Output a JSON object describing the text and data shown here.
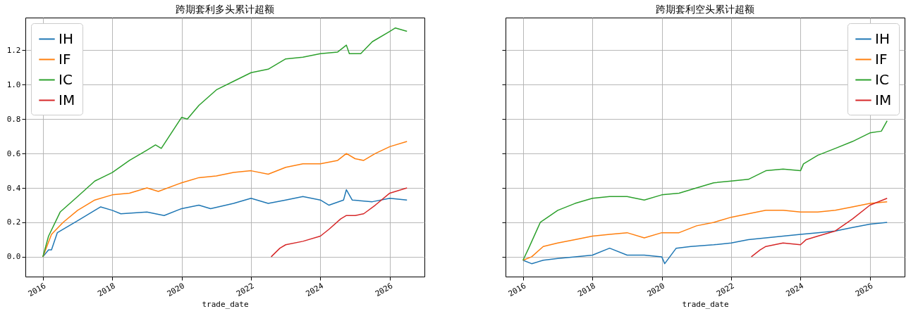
{
  "chart_data": [
    {
      "type": "line",
      "title": "跨期套利多头累计超额",
      "xlabel": "trade_date",
      "xlim": [
        "2015-07",
        "2027-01"
      ],
      "xticks": [
        "2016",
        "2018",
        "2020",
        "2022",
        "2024",
        "2026"
      ],
      "ylim": [
        -0.115,
        1.39
      ],
      "yticks": [
        {
          "value": 0,
          "label": "0.0"
        },
        {
          "value": 0.2,
          "label": "0.2"
        },
        {
          "value": 0.4,
          "label": "0.4"
        },
        {
          "value": 0.6,
          "label": "0.6"
        },
        {
          "value": 0.8,
          "label": "0.8"
        },
        {
          "value": 1,
          "label": "1.0"
        },
        {
          "value": 1.2,
          "label": "1.2"
        }
      ],
      "grid": true,
      "legend": "top left",
      "series": [
        {
          "name": "IH",
          "color": "#1f77b4",
          "x": [
            "2016-01",
            "2016-03",
            "2016-04",
            "2016-06",
            "2017-01",
            "2017-07",
            "2017-09",
            "2018-01",
            "2018-04",
            "2019-01",
            "2019-07",
            "2020-01",
            "2020-07",
            "2020-11",
            "2021-07",
            "2022-01",
            "2022-07",
            "2023-01",
            "2023-07",
            "2024-01",
            "2024-04",
            "2024-09",
            "2024-10",
            "2024-12",
            "2025-07",
            "2026-01",
            "2026-07"
          ],
          "values": [
            0,
            0.04,
            0.04,
            0.14,
            0.21,
            0.27,
            0.29,
            0.27,
            0.25,
            0.26,
            0.24,
            0.28,
            0.3,
            0.28,
            0.31,
            0.34,
            0.31,
            0.33,
            0.35,
            0.33,
            0.3,
            0.33,
            0.39,
            0.33,
            0.32,
            0.34,
            0.33
          ]
        },
        {
          "name": "IF",
          "color": "#ff7f0e",
          "x": [
            "2016-01",
            "2016-04",
            "2016-08",
            "2017-01",
            "2017-07",
            "2018-01",
            "2018-07",
            "2019-01",
            "2019-05",
            "2020-01",
            "2020-07",
            "2021-01",
            "2021-07",
            "2022-01",
            "2022-07",
            "2023-01",
            "2023-07",
            "2024-01",
            "2024-07",
            "2024-10",
            "2025-01",
            "2025-04",
            "2025-08",
            "2026-01",
            "2026-07"
          ],
          "values": [
            0,
            0.13,
            0.2,
            0.27,
            0.33,
            0.36,
            0.37,
            0.4,
            0.38,
            0.43,
            0.46,
            0.47,
            0.49,
            0.5,
            0.48,
            0.52,
            0.54,
            0.54,
            0.56,
            0.6,
            0.57,
            0.56,
            0.6,
            0.64,
            0.67
          ]
        },
        {
          "name": "IC",
          "color": "#2ca02c",
          "x": [
            "2016-01",
            "2016-03",
            "2016-07",
            "2017-01",
            "2017-07",
            "2018-01",
            "2018-07",
            "2019-01",
            "2019-04",
            "2019-06",
            "2020-01",
            "2020-03",
            "2020-07",
            "2021-01",
            "2021-07",
            "2022-01",
            "2022-07",
            "2023-01",
            "2023-07",
            "2024-01",
            "2024-07",
            "2024-10",
            "2024-11",
            "2025-03",
            "2025-07",
            "2026-01",
            "2026-03",
            "2026-07"
          ],
          "values": [
            0,
            0.12,
            0.26,
            0.35,
            0.44,
            0.49,
            0.56,
            0.62,
            0.65,
            0.63,
            0.81,
            0.8,
            0.88,
            0.97,
            1.02,
            1.07,
            1.09,
            1.15,
            1.16,
            1.18,
            1.19,
            1.23,
            1.18,
            1.18,
            1.25,
            1.31,
            1.33,
            1.31
          ]
        },
        {
          "name": "IM",
          "color": "#d62728",
          "x": [
            "2022-08",
            "2022-11",
            "2023-01",
            "2023-07",
            "2024-01",
            "2024-04",
            "2024-08",
            "2024-10",
            "2025-01",
            "2025-04",
            "2025-08",
            "2026-01",
            "2026-07"
          ],
          "values": [
            0,
            0.05,
            0.07,
            0.09,
            0.12,
            0.16,
            0.22,
            0.24,
            0.24,
            0.25,
            0.3,
            0.37,
            0.4
          ]
        }
      ]
    },
    {
      "type": "line",
      "title": "跨期套利空头累计超额",
      "xlabel": "trade_date",
      "xlim": [
        "2015-07",
        "2027-01"
      ],
      "xticks": [
        "2016",
        "2018",
        "2020",
        "2022",
        "2024",
        "2026"
      ],
      "ylim": [
        -0.115,
        1.39
      ],
      "yticks": [
        {
          "value": 0,
          "label": null
        },
        {
          "value": 0.2,
          "label": null
        },
        {
          "value": 0.4,
          "label": null
        },
        {
          "value": 0.6,
          "label": null
        },
        {
          "value": 0.8,
          "label": null
        },
        {
          "value": 1,
          "label": null
        },
        {
          "value": 1.2,
          "label": null
        }
      ],
      "tick_labels": "x",
      "grid": true,
      "legend": "top right",
      "series": [
        {
          "name": "IH",
          "color": "#1f77b4",
          "x": [
            "2016-01",
            "2016-04",
            "2016-08",
            "2017-01",
            "2017-07",
            "2018-01",
            "2018-07",
            "2019-01",
            "2019-07",
            "2020-01",
            "2020-02",
            "2020-06",
            "2020-11",
            "2021-07",
            "2022-01",
            "2022-07",
            "2023-01",
            "2023-07",
            "2024-01",
            "2024-07",
            "2025-01",
            "2025-07",
            "2026-01",
            "2026-07"
          ],
          "values": [
            -0.02,
            -0.04,
            -0.02,
            -0.01,
            0,
            0.01,
            0.05,
            0.01,
            0.01,
            0,
            -0.04,
            0.05,
            0.06,
            0.07,
            0.08,
            0.1,
            0.11,
            0.12,
            0.13,
            0.14,
            0.15,
            0.17,
            0.19,
            0.2
          ]
        },
        {
          "name": "IF",
          "color": "#ff7f0e",
          "x": [
            "2016-01",
            "2016-04",
            "2016-08",
            "2017-01",
            "2017-07",
            "2018-01",
            "2018-07",
            "2019-01",
            "2019-07",
            "2020-01",
            "2020-07",
            "2021-01",
            "2021-07",
            "2022-01",
            "2022-07",
            "2023-01",
            "2023-07",
            "2024-01",
            "2024-07",
            "2025-01",
            "2025-07",
            "2026-01",
            "2026-07"
          ],
          "values": [
            -0.02,
            0,
            0.06,
            0.08,
            0.1,
            0.12,
            0.13,
            0.14,
            0.11,
            0.14,
            0.14,
            0.18,
            0.2,
            0.23,
            0.25,
            0.27,
            0.27,
            0.26,
            0.26,
            0.27,
            0.29,
            0.31,
            0.32
          ]
        },
        {
          "name": "IC",
          "color": "#2ca02c",
          "x": [
            "2016-01",
            "2016-03",
            "2016-07",
            "2017-01",
            "2017-07",
            "2018-01",
            "2018-07",
            "2019-01",
            "2019-07",
            "2020-01",
            "2020-07",
            "2021-01",
            "2021-07",
            "2022-01",
            "2022-07",
            "2023-01",
            "2023-07",
            "2024-01",
            "2024-02",
            "2024-07",
            "2025-01",
            "2025-07",
            "2026-01",
            "2026-05",
            "2026-07"
          ],
          "values": [
            -0.02,
            0.05,
            0.2,
            0.27,
            0.31,
            0.34,
            0.35,
            0.35,
            0.33,
            0.36,
            0.37,
            0.4,
            0.43,
            0.44,
            0.45,
            0.5,
            0.51,
            0.5,
            0.54,
            0.59,
            0.63,
            0.67,
            0.72,
            0.73,
            0.79
          ]
        },
        {
          "name": "IM",
          "color": "#d62728",
          "x": [
            "2022-08",
            "2022-11",
            "2023-01",
            "2023-07",
            "2024-01",
            "2024-03",
            "2024-07",
            "2025-01",
            "2025-07",
            "2026-01",
            "2026-07"
          ],
          "values": [
            0,
            0.04,
            0.06,
            0.08,
            0.07,
            0.1,
            0.12,
            0.15,
            0.22,
            0.3,
            0.34
          ]
        }
      ]
    }
  ]
}
